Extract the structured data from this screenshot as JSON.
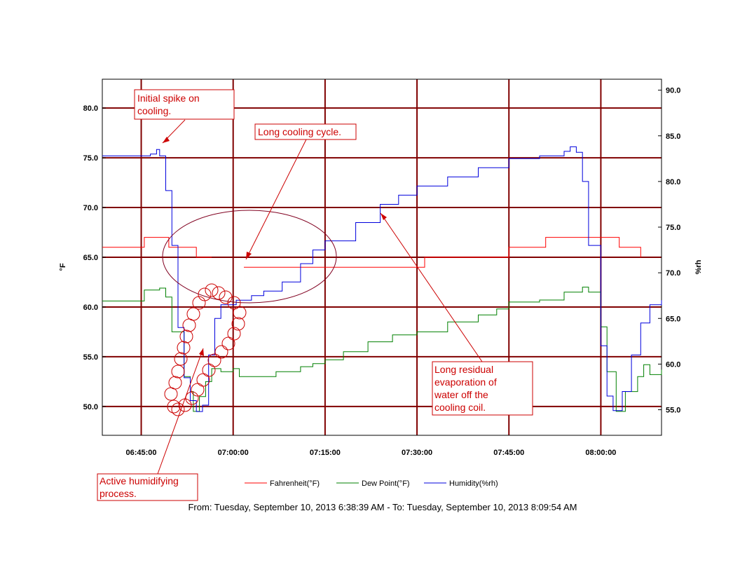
{
  "chart_data": {
    "type": "line",
    "x_ticks": [
      "06:45:00",
      "07:00:00",
      "07:15:00",
      "07:30:00",
      "07:45:00",
      "08:00:00"
    ],
    "x_range": [
      "06:38:39",
      "08:09:54"
    ],
    "y_left": {
      "label": "°F",
      "ticks": [
        "80.0",
        "75.0",
        "70.0",
        "65.0",
        "60.0",
        "55.0",
        "50.0"
      ],
      "range": [
        47.1,
        82.9
      ]
    },
    "y_right": {
      "label": "%rh",
      "ticks": [
        "90.0",
        "85.0",
        "80.0",
        "75.0",
        "70.0",
        "65.0",
        "60.0",
        "55.0"
      ],
      "range": [
        52.2,
        91.2
      ]
    },
    "grid": true,
    "legend_position": "bottom",
    "series": [
      {
        "name": "Fahrenheit(°F)",
        "color": "#ff0000",
        "axis": "left",
        "x": [
          "06:38:39",
          "06:45:00",
          "06:45:30",
          "06:49:00",
          "06:49:30",
          "06:53:30",
          "06:54:00",
          "06:56:30",
          "06:57:00",
          "06:58:30",
          "06:59:00",
          "07:00:00",
          "07:01:30",
          "07:01:45",
          "07:15:00",
          "07:18:00",
          "07:30:00",
          "07:31:00",
          "07:31:15",
          "07:45:00",
          "07:50:00",
          "07:51:00",
          "07:54:00",
          "07:57:00",
          "08:00:00",
          "08:02:00",
          "08:03:00",
          "08:06:00",
          "08:06:30"
        ],
        "values": [
          66.0,
          66.0,
          67.0,
          67.0,
          66.0,
          66.0,
          65.0,
          65.0,
          null,
          null,
          null,
          null,
          null,
          64.0,
          64.0,
          64.0,
          64.0,
          64.0,
          65.0,
          66.0,
          66.0,
          67.0,
          67.0,
          67.0,
          67.0,
          67.0,
          66.0,
          66.0,
          65.0
        ]
      },
      {
        "name": "Dew Point(°F)",
        "color": "#008000",
        "axis": "left",
        "x": [
          "06:38:39",
          "06:45:00",
          "06:45:30",
          "06:48:00",
          "06:49:00",
          "06:50:00",
          "06:52:00",
          "06:53:00",
          "06:53:30",
          "06:54:30",
          "06:55:30",
          "06:56:30",
          "06:58:00",
          "07:00:00",
          "07:01:00",
          "07:02:30",
          "07:07:00",
          "07:11:00",
          "07:13:00",
          "07:15:00",
          "07:18:00",
          "07:22:00",
          "07:26:00",
          "07:30:00",
          "07:35:00",
          "07:40:00",
          "07:43:00",
          "07:45:00",
          "07:50:00",
          "07:54:00",
          "07:57:00",
          "07:58:00",
          "08:00:00",
          "08:01:00",
          "08:02:30",
          "08:04:00",
          "08:06:00",
          "08:07:00",
          "08:08:00",
          "08:09:54"
        ],
        "values": [
          60.6,
          60.6,
          61.7,
          61.9,
          61.0,
          57.5,
          53.0,
          51.5,
          49.5,
          51.0,
          52.5,
          53.8,
          53.5,
          53.8,
          53.0,
          53.0,
          53.5,
          54.0,
          54.3,
          54.7,
          55.5,
          56.5,
          57.2,
          57.5,
          58.5,
          59.2,
          59.8,
          60.5,
          60.7,
          61.5,
          62.0,
          61.5,
          58.0,
          53.5,
          49.5,
          51.5,
          53.0,
          54.2,
          53.2,
          53.7
        ]
      },
      {
        "name": "Humidity(%rh)",
        "color": "#0000dd",
        "axis": "right",
        "x": [
          "06:38:39",
          "06:45:00",
          "06:46:30",
          "06:47:30",
          "06:48:00",
          "06:49:00",
          "06:50:00",
          "06:51:00",
          "06:52:00",
          "06:53:00",
          "06:54:00",
          "06:55:00",
          "06:56:00",
          "06:57:00",
          "06:58:00",
          "06:59:30",
          "07:00:30",
          "07:03:00",
          "07:05:00",
          "07:08:00",
          "07:11:00",
          "07:13:00",
          "07:15:00",
          "07:20:00",
          "07:24:00",
          "07:27:00",
          "07:30:00",
          "07:35:00",
          "07:40:00",
          "07:45:00",
          "07:50:00",
          "07:54:00",
          "07:55:00",
          "07:56:00",
          "07:57:00",
          "07:58:00",
          "08:00:00",
          "08:01:00",
          "08:02:00",
          "08:03:30",
          "08:05:00",
          "08:06:30",
          "08:08:00",
          "08:09:54"
        ],
        "values": [
          82.8,
          82.8,
          83.0,
          83.5,
          82.8,
          79.0,
          73.0,
          64.0,
          58.5,
          56.0,
          54.8,
          55.5,
          61.0,
          65.0,
          66.5,
          66.5,
          67.0,
          67.5,
          68.0,
          69.0,
          71.0,
          72.5,
          73.5,
          75.5,
          77.5,
          78.5,
          79.5,
          80.5,
          81.5,
          82.5,
          82.8,
          83.3,
          83.8,
          83.2,
          80.0,
          73.0,
          62.0,
          56.5,
          54.9,
          57.0,
          61.0,
          64.5,
          66.5,
          67.0
        ]
      }
    ],
    "annotations": [
      "Initial spike on cooling.",
      "Long cooling cycle.",
      "Long residual evaporation of water off the cooling coil.",
      "Active humidifying process."
    ]
  },
  "annotation_lines": {
    "initial_spike": [
      "Initial spike on",
      "cooling."
    ],
    "long_cooling": [
      "Long cooling cycle."
    ],
    "residual": [
      "Long residual",
      "evaporation of",
      "water off the",
      "cooling coil."
    ],
    "humidifying": [
      "Active humidifying",
      "process."
    ]
  },
  "legend": [
    "Fahrenheit(°F)",
    "Dew Point(°F)",
    "Humidity(%rh)"
  ],
  "footer": "From: Tuesday, September 10, 2013 6:38:39 AM  -  To: Tuesday, September 10, 2013 8:09:54 AM",
  "colors": {
    "grid": "#800000",
    "annotation": "#cc0000",
    "ellipse": "#800020",
    "temperature": "#ff0000",
    "dew_point": "#008000",
    "humidity": "#0000dd"
  }
}
